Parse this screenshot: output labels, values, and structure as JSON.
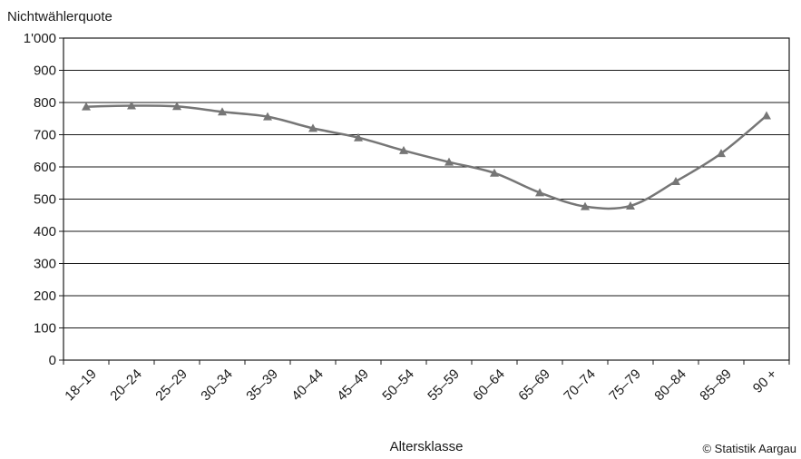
{
  "chart_data": {
    "type": "line",
    "title": "",
    "ylabel": "Nichtwählerquote",
    "xlabel": "Altersklasse",
    "categories": [
      "18–19",
      "20–24",
      "25–29",
      "30–34",
      "35–39",
      "40–44",
      "45–49",
      "50–54",
      "55–59",
      "60–64",
      "65–69",
      "70–74",
      "75–79",
      "80–84",
      "85–89",
      "90 +"
    ],
    "series": [
      {
        "values": [
          787,
          790,
          788,
          771,
          756,
          720,
          691,
          651,
          615,
          581,
          520,
          477,
          479,
          555,
          642,
          759
        ]
      }
    ],
    "ylim": [
      0,
      1000
    ],
    "yticks": [
      {
        "value": 0,
        "label": "0"
      },
      {
        "value": 100,
        "label": "100"
      },
      {
        "value": 200,
        "label": "200"
      },
      {
        "value": 300,
        "label": "300"
      },
      {
        "value": 400,
        "label": "400"
      },
      {
        "value": 500,
        "label": "500"
      },
      {
        "value": 600,
        "label": "600"
      },
      {
        "value": 700,
        "label": "700"
      },
      {
        "value": 800,
        "label": "800"
      },
      {
        "value": 900,
        "label": "900"
      },
      {
        "value": 1000,
        "label": "1'000"
      }
    ],
    "grid": true,
    "marker": "triangle",
    "line_color": "#767676"
  },
  "credit": "© Statistik Aargau"
}
